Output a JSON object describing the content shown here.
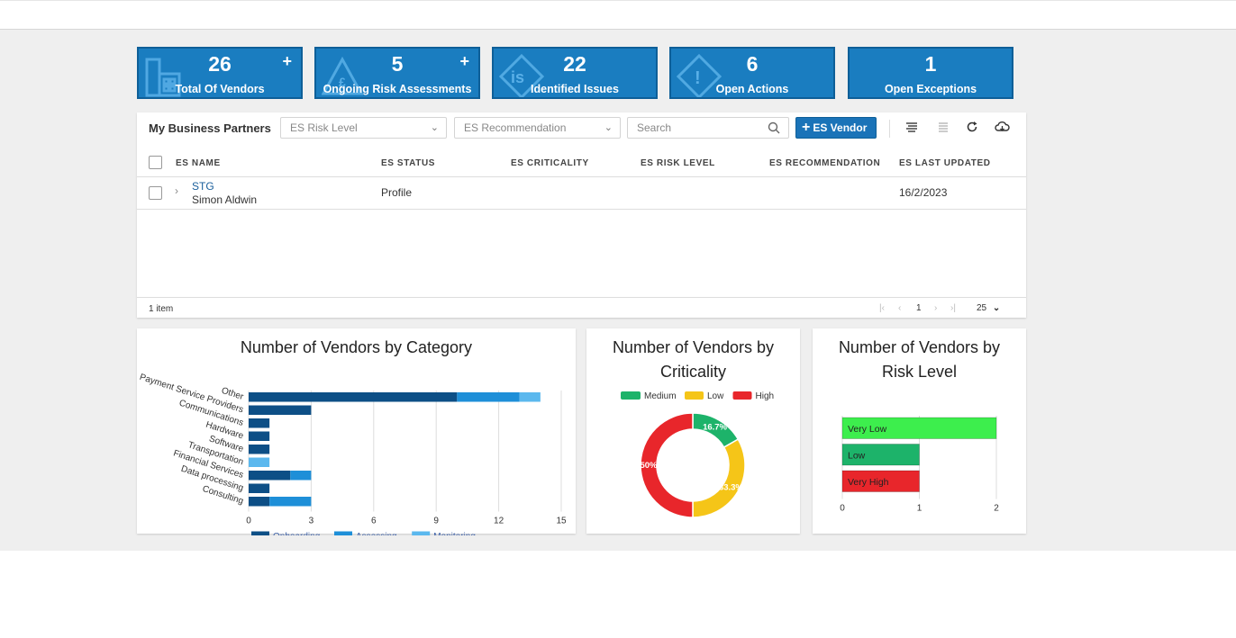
{
  "kpis": [
    {
      "value": "26",
      "label": "Total Of Vendors",
      "has_plus": true,
      "icon": "building-icon"
    },
    {
      "value": "5",
      "label": "Ongoing Risk Assessments",
      "has_plus": true,
      "icon": "warning-triangle-icon"
    },
    {
      "value": "22",
      "label": "Identified Issues",
      "has_plus": false,
      "icon": "issue-diamond-icon"
    },
    {
      "value": "6",
      "label": "Open Actions",
      "has_plus": false,
      "icon": "exclamation-diamond-icon"
    },
    {
      "value": "1",
      "label": "Open Exceptions",
      "has_plus": false,
      "icon": ""
    }
  ],
  "kpi_plus": "+",
  "grid": {
    "title": "My Business Partners",
    "risk_level_placeholder": "ES Risk Level",
    "recommendation_placeholder": "ES Recommendation",
    "search_placeholder": "Search",
    "add_button": "ES Vendor",
    "columns": [
      "ES NAME",
      "ES STATUS",
      "ES CRITICALITY",
      "ES RISK LEVEL",
      "ES RECOMMENDATION",
      "ES LAST UPDATED"
    ],
    "rows": [
      {
        "name": "STG",
        "owner": "Simon Aldwin",
        "status": "Profile",
        "criticality": "",
        "risk_level": "",
        "recommendation": "",
        "last_updated": "16/2/2023"
      }
    ],
    "item_count": "1 item",
    "page": "1",
    "page_size": "25"
  },
  "colors": {
    "brand": "#1a7dc0",
    "onboarding": "#0d4f86",
    "assessing": "#1e8fd8",
    "monitoring": "#5bb8ee",
    "medium": "#1db36a",
    "low": "#f5c518",
    "high": "#e8262b",
    "very_low": "#3dee4d"
  },
  "chart_data": [
    {
      "type": "bar",
      "orientation": "horizontal",
      "stacked": true,
      "title": "Number of Vendors by Category",
      "categories": [
        "Other",
        "Payment Service Providers",
        "Communications",
        "Hardware",
        "Software",
        "Transportation",
        "Financial Services",
        "Data processing",
        "Consulting"
      ],
      "series": [
        {
          "name": "Onboarding",
          "values": [
            10,
            3,
            1,
            1,
            1,
            0,
            2,
            1,
            1
          ]
        },
        {
          "name": "Assessing",
          "values": [
            3,
            0,
            0,
            0,
            0,
            0,
            1,
            0,
            2
          ]
        },
        {
          "name": "Monitoring",
          "values": [
            1,
            0,
            0,
            0,
            0,
            1,
            0,
            0,
            0
          ]
        }
      ],
      "xlim": [
        0,
        15
      ],
      "xticks": [
        "0",
        "3",
        "6",
        "9",
        "12",
        "15"
      ],
      "grid": true,
      "legend": "bottom"
    },
    {
      "type": "pie",
      "donut": true,
      "title": "Number of Vendors by Criticality",
      "labels": [
        "Medium",
        "Low",
        "High"
      ],
      "values": [
        16.7,
        33.3,
        50
      ],
      "data_labels": [
        "16.7%",
        "33.3%",
        "50%"
      ],
      "legend": "top"
    },
    {
      "type": "bar",
      "orientation": "horizontal",
      "title": "Number of Vendors by Risk Level",
      "categories": [
        "Very Low",
        "Low",
        "Very High"
      ],
      "values": [
        2,
        1,
        1
      ],
      "xlim": [
        0,
        2
      ],
      "xticks": [
        "0",
        "1",
        "2"
      ],
      "grid": true
    }
  ]
}
